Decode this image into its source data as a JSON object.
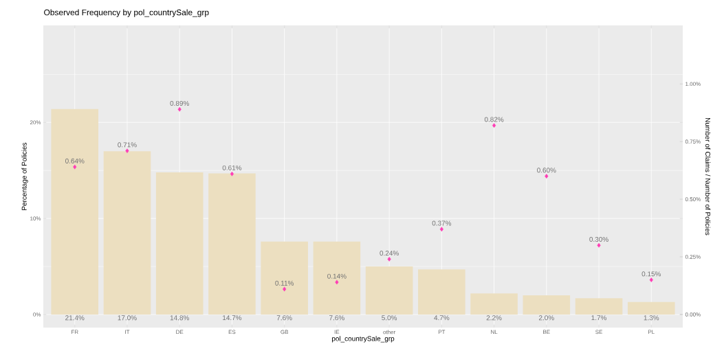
{
  "chart_data": {
    "type": "bar",
    "title": "Observed Frequency by pol_countrySale_grp",
    "xlabel": "pol_countrySale_grp",
    "ylabel": "Percentage of Policies",
    "y2label": "Number of Claims / Number of Policies",
    "categories": [
      "FR",
      "IT",
      "DE",
      "ES",
      "GB",
      "IE",
      "other",
      "PT",
      "NL",
      "BE",
      "SE",
      "PL"
    ],
    "series": [
      {
        "color": "#ecdfc0",
        "values": [
          21.4,
          17.0,
          14.8,
          14.7,
          7.6,
          7.6,
          5.0,
          4.7,
          2.2,
          2.0,
          1.7,
          1.3
        ],
        "value_labels": [
          "21.4%",
          "17.0%",
          "14.8%",
          "14.7%",
          "7.6%",
          "7.6%",
          "5.0%",
          "4.7%",
          "2.2%",
          "2.0%",
          "1.7%",
          "1.3%"
        ]
      },
      {
        "type": "scatter",
        "axis": "y2",
        "marker": "diamond",
        "color": "#ff3eb5",
        "values": [
          0.64,
          0.71,
          0.89,
          0.61,
          0.11,
          0.14,
          0.24,
          0.37,
          0.82,
          0.6,
          0.3,
          0.15
        ],
        "value_labels": [
          "0.64%",
          "0.71%",
          "0.89%",
          "0.61%",
          "0.11%",
          "0.14%",
          "0.24%",
          "0.37%",
          "0.82%",
          "0.60%",
          "0.30%",
          "0.15%"
        ]
      }
    ],
    "ylim": [
      -1.36,
      30.1
    ],
    "yticks": [
      {
        "value": 0,
        "label": "0%"
      },
      {
        "value": 5,
        "label": null
      },
      {
        "value": 10,
        "label": "10%"
      },
      {
        "value": 15,
        "label": null
      },
      {
        "value": 20,
        "label": "20%"
      },
      {
        "value": 25,
        "label": null
      }
    ],
    "y2lim": [
      -0.057,
      1.254
    ],
    "y2ticks": [
      {
        "value": 0,
        "label": "0.00%"
      },
      {
        "value": 0.25,
        "label": "0.25%"
      },
      {
        "value": 0.5,
        "label": "0.50%"
      },
      {
        "value": 0.75,
        "label": "0.75%"
      },
      {
        "value": 1,
        "label": "1.00%"
      }
    ],
    "grid": true
  }
}
